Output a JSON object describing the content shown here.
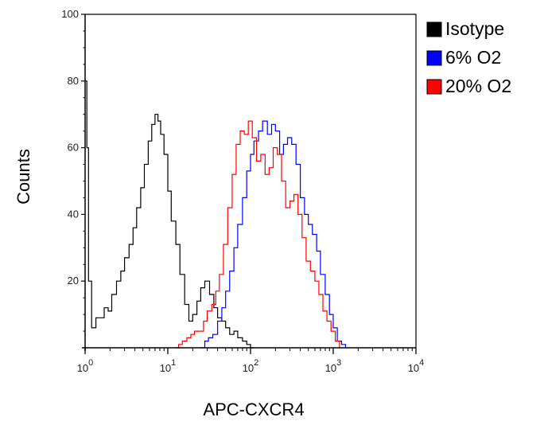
{
  "chart_data": {
    "type": "line",
    "title": "",
    "xlabel": "APC-CXCR4",
    "ylabel": "Counts",
    "x_scale": "log",
    "xlim": [
      1,
      10000
    ],
    "ylim": [
      0,
      100
    ],
    "x_ticks": [
      {
        "value": 1,
        "base": "10",
        "exp": "0"
      },
      {
        "value": 10,
        "base": "10",
        "exp": "1"
      },
      {
        "value": 100,
        "base": "10",
        "exp": "2"
      },
      {
        "value": 1000,
        "base": "10",
        "exp": "3"
      },
      {
        "value": 10000,
        "base": "10",
        "exp": "4"
      }
    ],
    "y_ticks": [
      "20",
      "40",
      "60",
      "80",
      "100"
    ],
    "grid": false,
    "legend_position": "top-right",
    "series": [
      {
        "name": "Isotype",
        "color": "#000000",
        "x": [
          1.0,
          1.05,
          1.1,
          1.2,
          1.35,
          1.5,
          1.7,
          1.9,
          2.1,
          2.4,
          2.7,
          3.0,
          3.4,
          3.8,
          4.2,
          4.7,
          5.2,
          5.8,
          6.4,
          7.0,
          7.6,
          8.2,
          9.0,
          10.0,
          11.0,
          12.5,
          14.0,
          16.0,
          18.0,
          20.0,
          22.5,
          25.0,
          28.0,
          32.0,
          36.0,
          40.0,
          45.0,
          50.0,
          56.0,
          63.0,
          70.0,
          80.0,
          90.0,
          100.0,
          110.0
        ],
        "y": [
          80,
          60,
          20,
          6,
          9,
          9,
          12,
          11,
          16,
          20,
          23,
          27,
          31,
          36,
          42,
          48,
          55,
          62,
          67,
          70,
          68,
          64,
          58,
          47,
          38,
          31,
          22,
          13,
          8,
          10,
          14,
          18,
          20,
          16,
          12,
          9,
          8,
          6,
          4,
          5,
          3,
          2,
          1,
          0,
          0
        ]
      },
      {
        "name": "6% O2",
        "color": "#0000ff",
        "x": [
          25,
          28,
          31,
          35,
          40,
          45,
          50,
          56,
          63,
          70,
          80,
          90,
          100,
          110,
          125,
          140,
          160,
          180,
          200,
          225,
          250,
          280,
          315,
          355,
          400,
          450,
          500,
          560,
          630,
          700,
          800,
          900,
          1000,
          1120,
          1260,
          1410
        ],
        "y": [
          0,
          2,
          3,
          4,
          8,
          12,
          17,
          23,
          30,
          37,
          45,
          53,
          58,
          62,
          65,
          68,
          64,
          67,
          65,
          58,
          61,
          63,
          61,
          55,
          45,
          40,
          37,
          34,
          29,
          22,
          16,
          10,
          6,
          2,
          1,
          0
        ]
      },
      {
        "name": "20% O2",
        "color": "#ff0000",
        "x": [
          12,
          13.5,
          15,
          17,
          19,
          21,
          24,
          27,
          30,
          34,
          38,
          42,
          47,
          53,
          60,
          67,
          75,
          84,
          94,
          105,
          118,
          133,
          150,
          168,
          188,
          211,
          237,
          266,
          300,
          335,
          375,
          420,
          470,
          530,
          600,
          670,
          750,
          840,
          940,
          1060,
          1190
        ],
        "y": [
          0,
          1,
          2,
          3,
          4,
          5,
          5,
          8,
          11,
          13,
          17,
          22,
          31,
          42,
          52,
          61,
          65,
          64,
          68,
          63,
          56,
          58,
          52,
          54,
          60,
          58,
          50,
          42,
          44,
          46,
          40,
          33,
          26,
          23,
          20,
          16,
          11,
          8,
          5,
          2,
          0
        ]
      }
    ]
  }
}
